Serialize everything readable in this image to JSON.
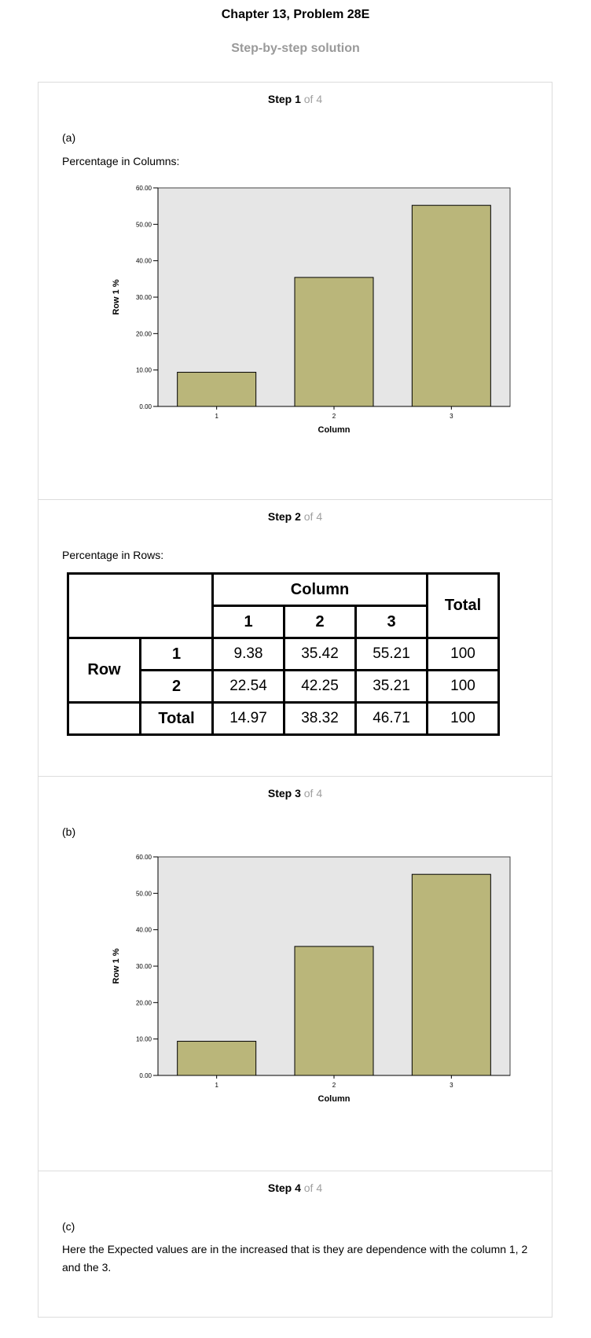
{
  "title": "Chapter 13, Problem 28E",
  "subtitle": "Step-by-step solution",
  "steps": [
    {
      "num": "Step 1",
      "of": " of 4",
      "part": "(a)",
      "caption": "Percentage in Columns:"
    },
    {
      "num": "Step 2",
      "of": " of 4",
      "caption": "Percentage in Rows:"
    },
    {
      "num": "Step 3",
      "of": " of 4",
      "part": "(b)"
    },
    {
      "num": "Step 4",
      "of": " of 4",
      "part": "(c)",
      "text": "Here the Expected values are in the increased that is they are dependence with the column 1, 2 and the 3."
    }
  ],
  "table": {
    "column_header": "Column",
    "total_header": "Total",
    "col_labels": [
      "1",
      "2",
      "3"
    ],
    "row_header": "Row",
    "rows": [
      {
        "label": "1",
        "values": [
          "9.38",
          "35.42",
          "55.21"
        ],
        "total": "100"
      },
      {
        "label": "2",
        "values": [
          "22.54",
          "42.25",
          "35.21"
        ],
        "total": "100"
      }
    ],
    "total_row": {
      "label": "Total",
      "values": [
        "14.97",
        "38.32",
        "46.71"
      ],
      "total": "100"
    }
  },
  "chart_data": [
    {
      "type": "bar",
      "categories": [
        "1",
        "2",
        "3"
      ],
      "values": [
        9.38,
        35.42,
        55.21
      ],
      "xlabel": "Column",
      "ylabel": "Row 1 %",
      "ylim": [
        0,
        60
      ],
      "yticks": [
        "0.00",
        "10.00",
        "20.00",
        "30.00",
        "40.00",
        "50.00",
        "60.00"
      ],
      "grid": false,
      "bar_color": "#bab67a",
      "plot_background": "#e6e6e6"
    },
    {
      "type": "bar",
      "categories": [
        "1",
        "2",
        "3"
      ],
      "values": [
        9.38,
        35.42,
        55.21
      ],
      "xlabel": "Column",
      "ylabel": "Row 1 %",
      "ylim": [
        0,
        60
      ],
      "yticks": [
        "0.00",
        "10.00",
        "20.00",
        "30.00",
        "40.00",
        "50.00",
        "60.00"
      ],
      "grid": false,
      "bar_color": "#bab67a",
      "plot_background": "#e6e6e6"
    }
  ]
}
